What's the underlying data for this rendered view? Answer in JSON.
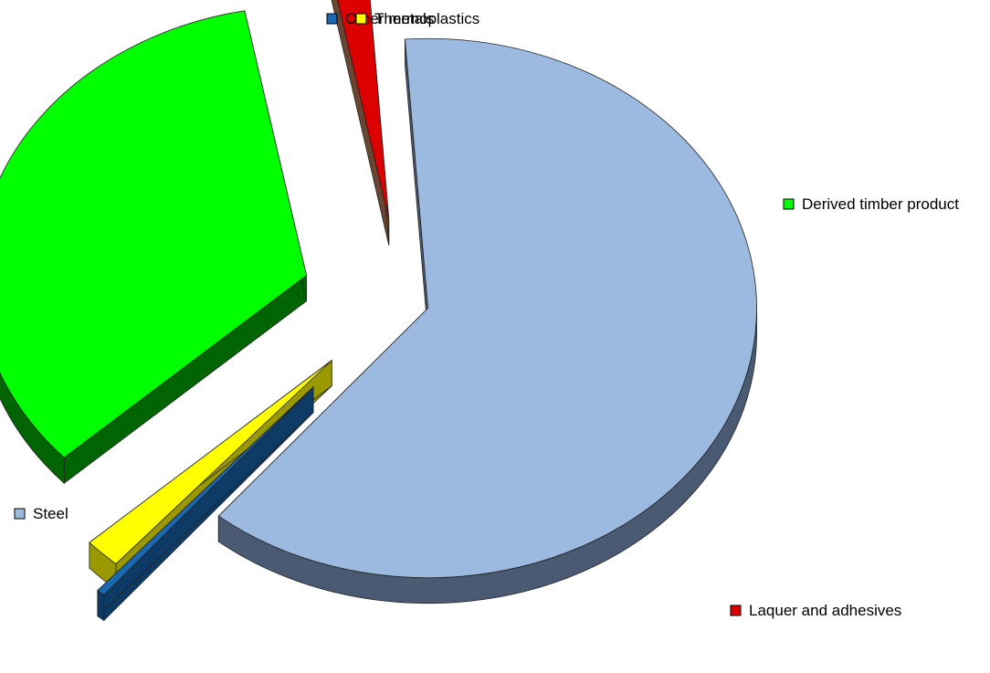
{
  "chart_data": {
    "type": "pie",
    "title": "",
    "style": "3d-exploded",
    "labels_shown": "beside-slices-with-color-key",
    "slices": [
      {
        "name": "Steel",
        "value": 62.1,
        "color": "#9cbadf",
        "side_color": "#4a5a72"
      },
      {
        "name": "Other metals",
        "value": 0.4,
        "color": "#1a68b0",
        "side_color": "#0e3a66"
      },
      {
        "name": "Thermoplastics",
        "value": 1.8,
        "color": "#ffff00",
        "side_color": "#9a9a00"
      },
      {
        "name": "Derived timber product",
        "value": 33.8,
        "color": "#00ff00",
        "side_color": "#006400"
      },
      {
        "name": "Laquer and adhesives",
        "value": 1.9,
        "color": "#dd0000",
        "side_color": "#6a4530"
      }
    ]
  }
}
